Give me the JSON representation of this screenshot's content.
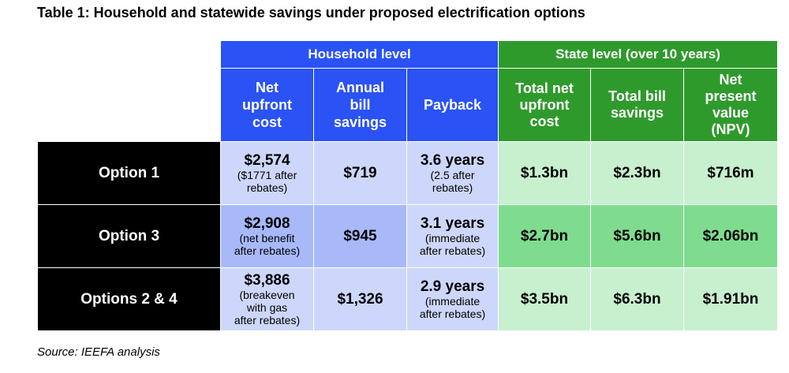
{
  "title": "Table 1: Household and statewide savings under proposed electrification options",
  "source": "Source: IEEFA analysis",
  "groups": {
    "household": "Household level",
    "state": "State level (over 10 years)"
  },
  "columns": {
    "net_upfront": [
      "Net",
      "upfront",
      "cost"
    ],
    "annual_bill": [
      "Annual",
      "bill",
      "savings"
    ],
    "payback": [
      "Payback"
    ],
    "total_net_upfront": [
      "Total net",
      "upfront",
      "cost"
    ],
    "total_bill": [
      "Total bill",
      "savings"
    ],
    "npv": [
      "Net",
      "present",
      "value",
      "(NPV)"
    ]
  },
  "rows": [
    {
      "label": "Option 1",
      "net_upfront": {
        "value": "$2,574",
        "note": [
          "($1771 after",
          "rebates)"
        ]
      },
      "annual_bill": "$719",
      "payback": {
        "value": "3.6 years",
        "note": [
          "(2.5 after",
          "rebates)"
        ]
      },
      "total_net_upfront": "$1.3bn",
      "total_bill": "$2.3bn",
      "npv": "$716m"
    },
    {
      "label": "Option 3",
      "net_upfront": {
        "value": "$2,908",
        "note": [
          "(net benefit",
          "after rebates)"
        ]
      },
      "annual_bill": "$945",
      "payback": {
        "value": "3.1 years",
        "note": [
          "(immediate",
          "after rebates)"
        ]
      },
      "total_net_upfront": "$2.7bn",
      "total_bill": "$5.6bn",
      "npv": "$2.06bn"
    },
    {
      "label": "Options 2 & 4",
      "net_upfront": {
        "value": "$3,886",
        "note": [
          "(breakeven",
          "with gas",
          "after rebates)"
        ]
      },
      "annual_bill": "$1,326",
      "payback": {
        "value": "2.9 years",
        "note": [
          "(immediate",
          "after rebates)"
        ]
      },
      "total_net_upfront": "$3.5bn",
      "total_bill": "$6.3bn",
      "npv": "$1.91bn"
    }
  ],
  "colors": {
    "household_header": "#2a52f5",
    "state_header": "#2f9a2c",
    "household_cell_light": "#cdd7fb",
    "household_cell_mid": "#a8b9fa",
    "state_cell_light": "#c7f0cf",
    "state_cell_mid": "#7fdc8f",
    "row_label_bg": "#000000"
  }
}
